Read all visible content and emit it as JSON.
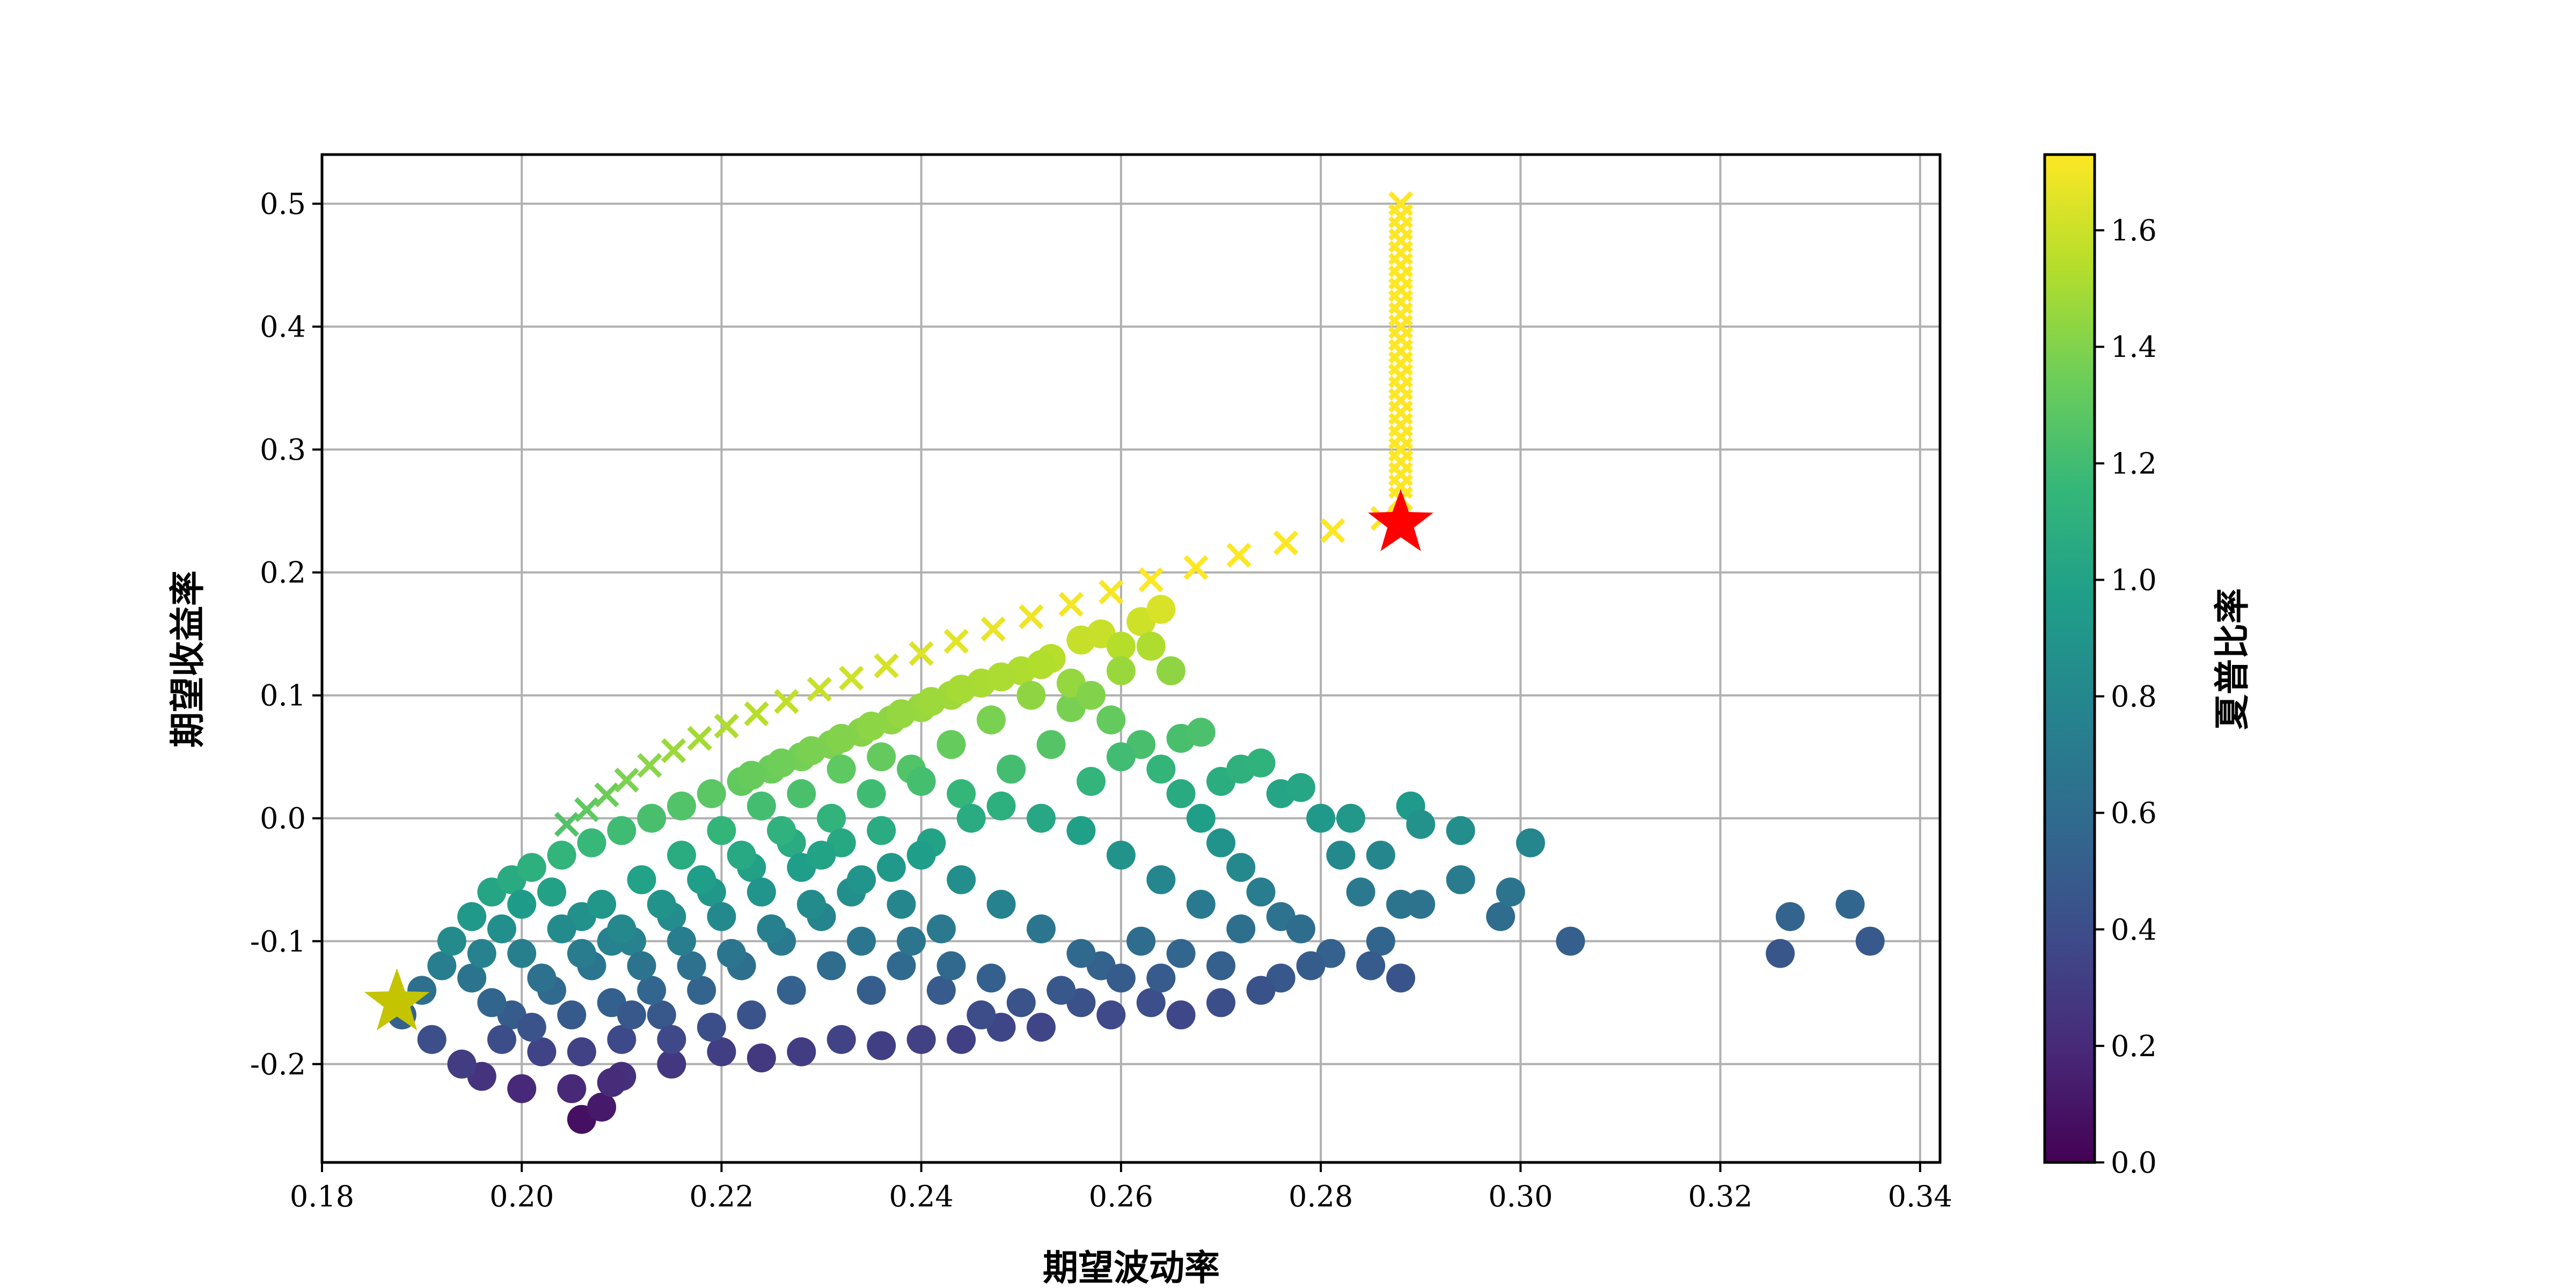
{
  "chart_data": {
    "type": "scatter",
    "title": "",
    "xlabel": "期望波动率",
    "ylabel": "期望收益率",
    "colorbar_label": "夏普比率",
    "xlim": [
      0.18,
      0.342
    ],
    "ylim": [
      -0.28,
      0.54
    ],
    "x_ticks": [
      0.18,
      0.2,
      0.22,
      0.24,
      0.26,
      0.28,
      0.3,
      0.32,
      0.34
    ],
    "x_tick_labels": [
      "0.18",
      "0.20",
      "0.22",
      "0.24",
      "0.26",
      "0.28",
      "0.30",
      "0.32",
      "0.34"
    ],
    "y_ticks": [
      -0.2,
      -0.1,
      0.0,
      0.1,
      0.2,
      0.3,
      0.4,
      0.5
    ],
    "y_tick_labels": [
      "-0.2",
      "-0.1",
      "0.0",
      "0.1",
      "0.2",
      "0.3",
      "0.4",
      "0.5"
    ],
    "colorbar_range": [
      0.0,
      1.73
    ],
    "colorbar_ticks": [
      0.0,
      0.2,
      0.4,
      0.6,
      0.8,
      1.0,
      1.2,
      1.4,
      1.6
    ],
    "colorbar_tick_labels": [
      "0.0",
      "0.2",
      "0.4",
      "0.6",
      "0.8",
      "1.0",
      "1.2",
      "1.4",
      "1.6"
    ],
    "colormap": "viridis",
    "grid": true,
    "series": [
      {
        "marker": "circle",
        "points": [
          [
            0.188,
            -0.16
          ],
          [
            0.19,
            -0.14
          ],
          [
            0.192,
            -0.12
          ],
          [
            0.191,
            -0.18
          ],
          [
            0.193,
            -0.1
          ],
          [
            0.195,
            -0.08
          ],
          [
            0.197,
            -0.06
          ],
          [
            0.199,
            -0.05
          ],
          [
            0.201,
            -0.04
          ],
          [
            0.204,
            -0.03
          ],
          [
            0.207,
            -0.02
          ],
          [
            0.21,
            -0.01
          ],
          [
            0.213,
            0.0
          ],
          [
            0.216,
            0.01
          ],
          [
            0.219,
            0.02
          ],
          [
            0.222,
            0.03
          ],
          [
            0.225,
            0.04
          ],
          [
            0.228,
            0.05
          ],
          [
            0.231,
            0.06
          ],
          [
            0.234,
            0.07
          ],
          [
            0.237,
            0.08
          ],
          [
            0.24,
            0.09
          ],
          [
            0.243,
            0.1
          ],
          [
            0.246,
            0.11
          ],
          [
            0.25,
            0.12
          ],
          [
            0.253,
            0.13
          ],
          [
            0.256,
            0.145
          ],
          [
            0.258,
            0.15
          ],
          [
            0.26,
            0.14
          ],
          [
            0.262,
            0.16
          ],
          [
            0.264,
            0.17
          ],
          [
            0.265,
            0.12
          ],
          [
            0.266,
            0.065
          ],
          [
            0.268,
            0.07
          ],
          [
            0.27,
            0.03
          ],
          [
            0.272,
            0.04
          ],
          [
            0.274,
            0.045
          ],
          [
            0.276,
            0.02
          ],
          [
            0.278,
            0.025
          ],
          [
            0.28,
            0.0
          ],
          [
            0.282,
            -0.03
          ],
          [
            0.283,
            0.0
          ],
          [
            0.284,
            -0.06
          ],
          [
            0.286,
            -0.03
          ],
          [
            0.288,
            -0.07
          ],
          [
            0.29,
            -0.07
          ],
          [
            0.289,
            0.01
          ],
          [
            0.29,
            -0.005
          ],
          [
            0.294,
            -0.01
          ],
          [
            0.294,
            -0.05
          ],
          [
            0.298,
            -0.08
          ],
          [
            0.299,
            -0.06
          ],
          [
            0.301,
            -0.02
          ],
          [
            0.305,
            -0.1
          ],
          [
            0.326,
            -0.11
          ],
          [
            0.327,
            -0.08
          ],
          [
            0.333,
            -0.07
          ],
          [
            0.335,
            -0.1
          ],
          [
            0.286,
            -0.1
          ],
          [
            0.288,
            -0.13
          ],
          [
            0.285,
            -0.12
          ],
          [
            0.281,
            -0.11
          ],
          [
            0.279,
            -0.12
          ],
          [
            0.276,
            -0.13
          ],
          [
            0.274,
            -0.14
          ],
          [
            0.27,
            -0.15
          ],
          [
            0.266,
            -0.16
          ],
          [
            0.263,
            -0.15
          ],
          [
            0.259,
            -0.16
          ],
          [
            0.256,
            -0.15
          ],
          [
            0.252,
            -0.17
          ],
          [
            0.248,
            -0.17
          ],
          [
            0.244,
            -0.18
          ],
          [
            0.24,
            -0.18
          ],
          [
            0.236,
            -0.185
          ],
          [
            0.232,
            -0.18
          ],
          [
            0.228,
            -0.19
          ],
          [
            0.224,
            -0.195
          ],
          [
            0.22,
            -0.19
          ],
          [
            0.215,
            -0.2
          ],
          [
            0.21,
            -0.21
          ],
          [
            0.205,
            -0.22
          ],
          [
            0.2,
            -0.22
          ],
          [
            0.196,
            -0.21
          ],
          [
            0.194,
            -0.2
          ],
          [
            0.206,
            -0.245
          ],
          [
            0.208,
            -0.235
          ],
          [
            0.209,
            -0.215
          ],
          [
            0.199,
            -0.16
          ],
          [
            0.203,
            -0.14
          ],
          [
            0.207,
            -0.12
          ],
          [
            0.211,
            -0.1
          ],
          [
            0.215,
            -0.08
          ],
          [
            0.219,
            -0.06
          ],
          [
            0.223,
            -0.04
          ],
          [
            0.227,
            -0.02
          ],
          [
            0.231,
            0.0
          ],
          [
            0.235,
            0.02
          ],
          [
            0.239,
            0.04
          ],
          [
            0.243,
            0.06
          ],
          [
            0.247,
            0.08
          ],
          [
            0.251,
            0.1
          ],
          [
            0.255,
            0.09
          ],
          [
            0.259,
            0.08
          ],
          [
            0.262,
            0.06
          ],
          [
            0.264,
            0.04
          ],
          [
            0.266,
            0.02
          ],
          [
            0.268,
            0.0
          ],
          [
            0.27,
            -0.02
          ],
          [
            0.272,
            -0.04
          ],
          [
            0.274,
            -0.06
          ],
          [
            0.276,
            -0.08
          ],
          [
            0.278,
            -0.09
          ],
          [
            0.262,
            -0.1
          ],
          [
            0.258,
            -0.12
          ],
          [
            0.254,
            -0.14
          ],
          [
            0.25,
            -0.15
          ],
          [
            0.246,
            -0.16
          ],
          [
            0.242,
            -0.14
          ],
          [
            0.238,
            -0.12
          ],
          [
            0.234,
            -0.1
          ],
          [
            0.23,
            -0.08
          ],
          [
            0.226,
            -0.1
          ],
          [
            0.222,
            -0.12
          ],
          [
            0.218,
            -0.14
          ],
          [
            0.214,
            -0.16
          ],
          [
            0.21,
            -0.18
          ],
          [
            0.206,
            -0.19
          ],
          [
            0.202,
            -0.19
          ],
          [
            0.198,
            -0.18
          ],
          [
            0.212,
            -0.05
          ],
          [
            0.216,
            -0.03
          ],
          [
            0.22,
            -0.01
          ],
          [
            0.224,
            0.01
          ],
          [
            0.228,
            0.02
          ],
          [
            0.232,
            0.04
          ],
          [
            0.236,
            0.05
          ],
          [
            0.24,
            0.03
          ],
          [
            0.244,
            0.02
          ],
          [
            0.248,
            0.01
          ],
          [
            0.252,
            0.0
          ],
          [
            0.256,
            -0.01
          ],
          [
            0.26,
            -0.03
          ],
          [
            0.264,
            -0.05
          ],
          [
            0.268,
            -0.07
          ],
          [
            0.272,
            -0.09
          ],
          [
            0.266,
            -0.11
          ],
          [
            0.27,
            -0.12
          ],
          [
            0.255,
            0.11
          ],
          [
            0.252,
            0.125
          ],
          [
            0.248,
            0.115
          ],
          [
            0.244,
            0.105
          ],
          [
            0.241,
            0.095
          ],
          [
            0.238,
            0.085
          ],
          [
            0.235,
            0.075
          ],
          [
            0.232,
            0.065
          ],
          [
            0.229,
            0.055
          ],
          [
            0.226,
            0.045
          ],
          [
            0.223,
            0.035
          ],
          [
            0.257,
            0.1
          ],
          [
            0.26,
            0.12
          ],
          [
            0.263,
            0.14
          ],
          [
            0.26,
            0.05
          ],
          [
            0.257,
            0.03
          ],
          [
            0.253,
            0.06
          ],
          [
            0.249,
            0.04
          ],
          [
            0.245,
            0.0
          ],
          [
            0.241,
            -0.02
          ],
          [
            0.237,
            -0.04
          ],
          [
            0.233,
            -0.06
          ],
          [
            0.229,
            -0.07
          ],
          [
            0.225,
            -0.09
          ],
          [
            0.221,
            -0.11
          ],
          [
            0.217,
            -0.12
          ],
          [
            0.213,
            -0.14
          ],
          [
            0.209,
            -0.15
          ],
          [
            0.205,
            -0.16
          ],
          [
            0.201,
            -0.17
          ],
          [
            0.197,
            -0.15
          ],
          [
            0.195,
            -0.13
          ],
          [
            0.196,
            -0.11
          ],
          [
            0.198,
            -0.09
          ],
          [
            0.2,
            -0.07
          ],
          [
            0.203,
            -0.06
          ],
          [
            0.206,
            -0.08
          ],
          [
            0.209,
            -0.1
          ],
          [
            0.212,
            -0.12
          ],
          [
            0.216,
            -0.1
          ],
          [
            0.22,
            -0.08
          ],
          [
            0.224,
            -0.06
          ],
          [
            0.228,
            -0.04
          ],
          [
            0.232,
            -0.02
          ],
          [
            0.236,
            -0.01
          ],
          [
            0.24,
            -0.03
          ],
          [
            0.244,
            -0.05
          ],
          [
            0.248,
            -0.07
          ],
          [
            0.252,
            -0.09
          ],
          [
            0.256,
            -0.11
          ],
          [
            0.26,
            -0.13
          ],
          [
            0.264,
            -0.13
          ],
          [
            0.242,
            -0.09
          ],
          [
            0.238,
            -0.07
          ],
          [
            0.234,
            -0.05
          ],
          [
            0.23,
            -0.03
          ],
          [
            0.226,
            -0.01
          ],
          [
            0.222,
            -0.03
          ],
          [
            0.218,
            -0.05
          ],
          [
            0.214,
            -0.07
          ],
          [
            0.21,
            -0.09
          ],
          [
            0.206,
            -0.11
          ],
          [
            0.202,
            -0.13
          ],
          [
            0.2,
            -0.11
          ],
          [
            0.204,
            -0.09
          ],
          [
            0.208,
            -0.07
          ],
          [
            0.247,
            -0.13
          ],
          [
            0.243,
            -0.12
          ],
          [
            0.239,
            -0.1
          ],
          [
            0.235,
            -0.14
          ],
          [
            0.231,
            -0.12
          ],
          [
            0.227,
            -0.14
          ],
          [
            0.223,
            -0.16
          ],
          [
            0.219,
            -0.17
          ],
          [
            0.215,
            -0.18
          ],
          [
            0.211,
            -0.16
          ]
        ]
      },
      {
        "marker": "x",
        "points": [
          [
            0.2045,
            -0.005
          ],
          [
            0.2065,
            0.007
          ],
          [
            0.2085,
            0.019
          ],
          [
            0.2105,
            0.031
          ],
          [
            0.2128,
            0.043
          ],
          [
            0.2152,
            0.055
          ],
          [
            0.2178,
            0.065
          ],
          [
            0.2205,
            0.075
          ],
          [
            0.2235,
            0.085
          ],
          [
            0.2265,
            0.095
          ],
          [
            0.2298,
            0.105
          ],
          [
            0.233,
            0.114
          ],
          [
            0.2365,
            0.124
          ],
          [
            0.24,
            0.134
          ],
          [
            0.2435,
            0.144
          ],
          [
            0.2472,
            0.154
          ],
          [
            0.251,
            0.164
          ],
          [
            0.255,
            0.174
          ],
          [
            0.259,
            0.184
          ],
          [
            0.263,
            0.194
          ],
          [
            0.2675,
            0.204
          ],
          [
            0.2718,
            0.214
          ],
          [
            0.2765,
            0.224
          ],
          [
            0.2812,
            0.234
          ],
          [
            0.2862,
            0.244
          ],
          [
            0.288,
            0.26
          ],
          [
            0.288,
            0.27
          ],
          [
            0.288,
            0.28
          ],
          [
            0.288,
            0.29
          ],
          [
            0.288,
            0.3
          ],
          [
            0.288,
            0.31
          ],
          [
            0.288,
            0.32
          ],
          [
            0.288,
            0.33
          ],
          [
            0.288,
            0.34
          ],
          [
            0.288,
            0.35
          ],
          [
            0.288,
            0.36
          ],
          [
            0.288,
            0.37
          ],
          [
            0.288,
            0.38
          ],
          [
            0.288,
            0.39
          ],
          [
            0.288,
            0.4
          ],
          [
            0.288,
            0.41
          ],
          [
            0.288,
            0.42
          ],
          [
            0.288,
            0.43
          ],
          [
            0.288,
            0.44
          ],
          [
            0.288,
            0.45
          ],
          [
            0.288,
            0.46
          ],
          [
            0.288,
            0.47
          ],
          [
            0.288,
            0.48
          ],
          [
            0.288,
            0.49
          ],
          [
            0.288,
            0.5
          ]
        ]
      }
    ],
    "highlights": [
      {
        "marker": "star",
        "x": 0.288,
        "y": 0.24,
        "color": "#ff0000"
      },
      {
        "marker": "star",
        "x": 0.1875,
        "y": -0.15,
        "color": "#c4c400"
      }
    ]
  }
}
